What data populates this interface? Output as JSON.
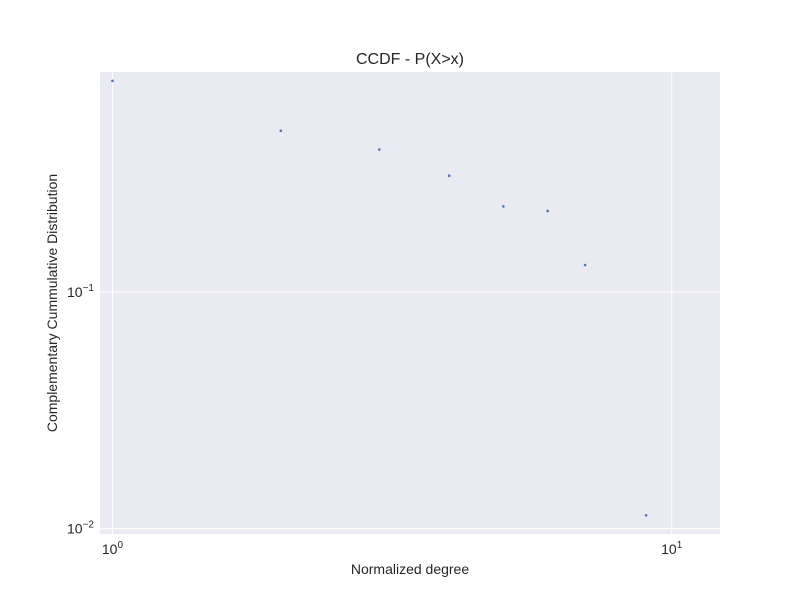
{
  "chart_data": {
    "type": "scatter",
    "title": "CCDF - P(X>x)",
    "xlabel": "Normalized degree",
    "ylabel": "Complementary Cummulative Distribution",
    "x_scale": "log",
    "y_scale": "log",
    "xlim": [
      0.95,
      12.2
    ],
    "ylim": [
      0.0095,
      0.85
    ],
    "grid": true,
    "x_ticks": [
      {
        "value": 1,
        "base": "10",
        "exp": "0"
      },
      {
        "value": 10,
        "base": "10",
        "exp": "1"
      }
    ],
    "y_ticks": [
      {
        "value": 0.1,
        "base": "10",
        "exp": "−1"
      },
      {
        "value": 0.01,
        "base": "10",
        "exp": "−2"
      }
    ],
    "series": [
      {
        "color": "#4c72b0",
        "points": [
          {
            "x": 1.0,
            "y": 0.78
          },
          {
            "x": 2.0,
            "y": 0.48
          },
          {
            "x": 3.0,
            "y": 0.4
          },
          {
            "x": 4.0,
            "y": 0.31
          },
          {
            "x": 5.0,
            "y": 0.23
          },
          {
            "x": 6.0,
            "y": 0.22
          },
          {
            "x": 7.0,
            "y": 0.13
          },
          {
            "x": 9.0,
            "y": 0.0114
          }
        ]
      }
    ]
  }
}
